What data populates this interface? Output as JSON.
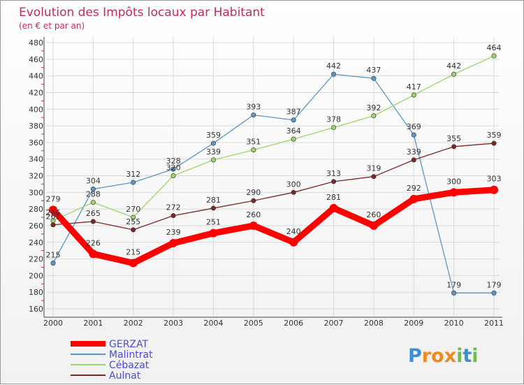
{
  "chart_data": {
    "type": "line",
    "title": "Evolution des Impôts locaux par Habitant",
    "subtitle": "(en € et par an)",
    "xlabel": "",
    "ylabel": "",
    "x": [
      "2000",
      "2001",
      "2002",
      "2003",
      "2004",
      "2005",
      "2006",
      "2007",
      "2008",
      "2009",
      "2010",
      "2011"
    ],
    "ylim": [
      160,
      480
    ],
    "yticks": [
      "160",
      "180",
      "200",
      "220",
      "240",
      "260",
      "280",
      "300",
      "320",
      "340",
      "360",
      "380",
      "400",
      "420",
      "440",
      "460",
      "480"
    ],
    "grid": true,
    "legend_position": "bottom-left",
    "series": [
      {
        "name": "Malintrat",
        "color": "#5b96c8",
        "values": [
          215,
          304,
          312,
          328,
          359,
          393,
          387,
          442,
          437,
          369,
          179,
          179
        ]
      },
      {
        "name": "Cébazat",
        "color": "#9ad66b",
        "values": [
          266,
          288,
          270,
          320,
          339,
          351,
          364,
          378,
          392,
          417,
          442,
          464
        ]
      },
      {
        "name": "Aulnat",
        "color": "#7a2828",
        "values": [
          261,
          265,
          255,
          272,
          281,
          290,
          300,
          313,
          319,
          339,
          355,
          359
        ]
      },
      {
        "name": "GERZAT",
        "color": "#ff0000",
        "values": [
          279,
          226,
          215,
          239,
          251,
          260,
          240,
          281,
          260,
          292,
          300,
          303
        ]
      }
    ],
    "legend_order": [
      "GERZAT",
      "Malintrat",
      "Cébazat",
      "Aulnat"
    ]
  },
  "logo": {
    "letters": [
      "P",
      "r",
      "o",
      "x",
      "i",
      "t",
      "i"
    ],
    "colors": [
      "#3b8fd6",
      "#f08a1e",
      "#f08a1e",
      "#f08a1e",
      "#6cc04a",
      "#3b8fd6",
      "#6cc04a"
    ]
  }
}
